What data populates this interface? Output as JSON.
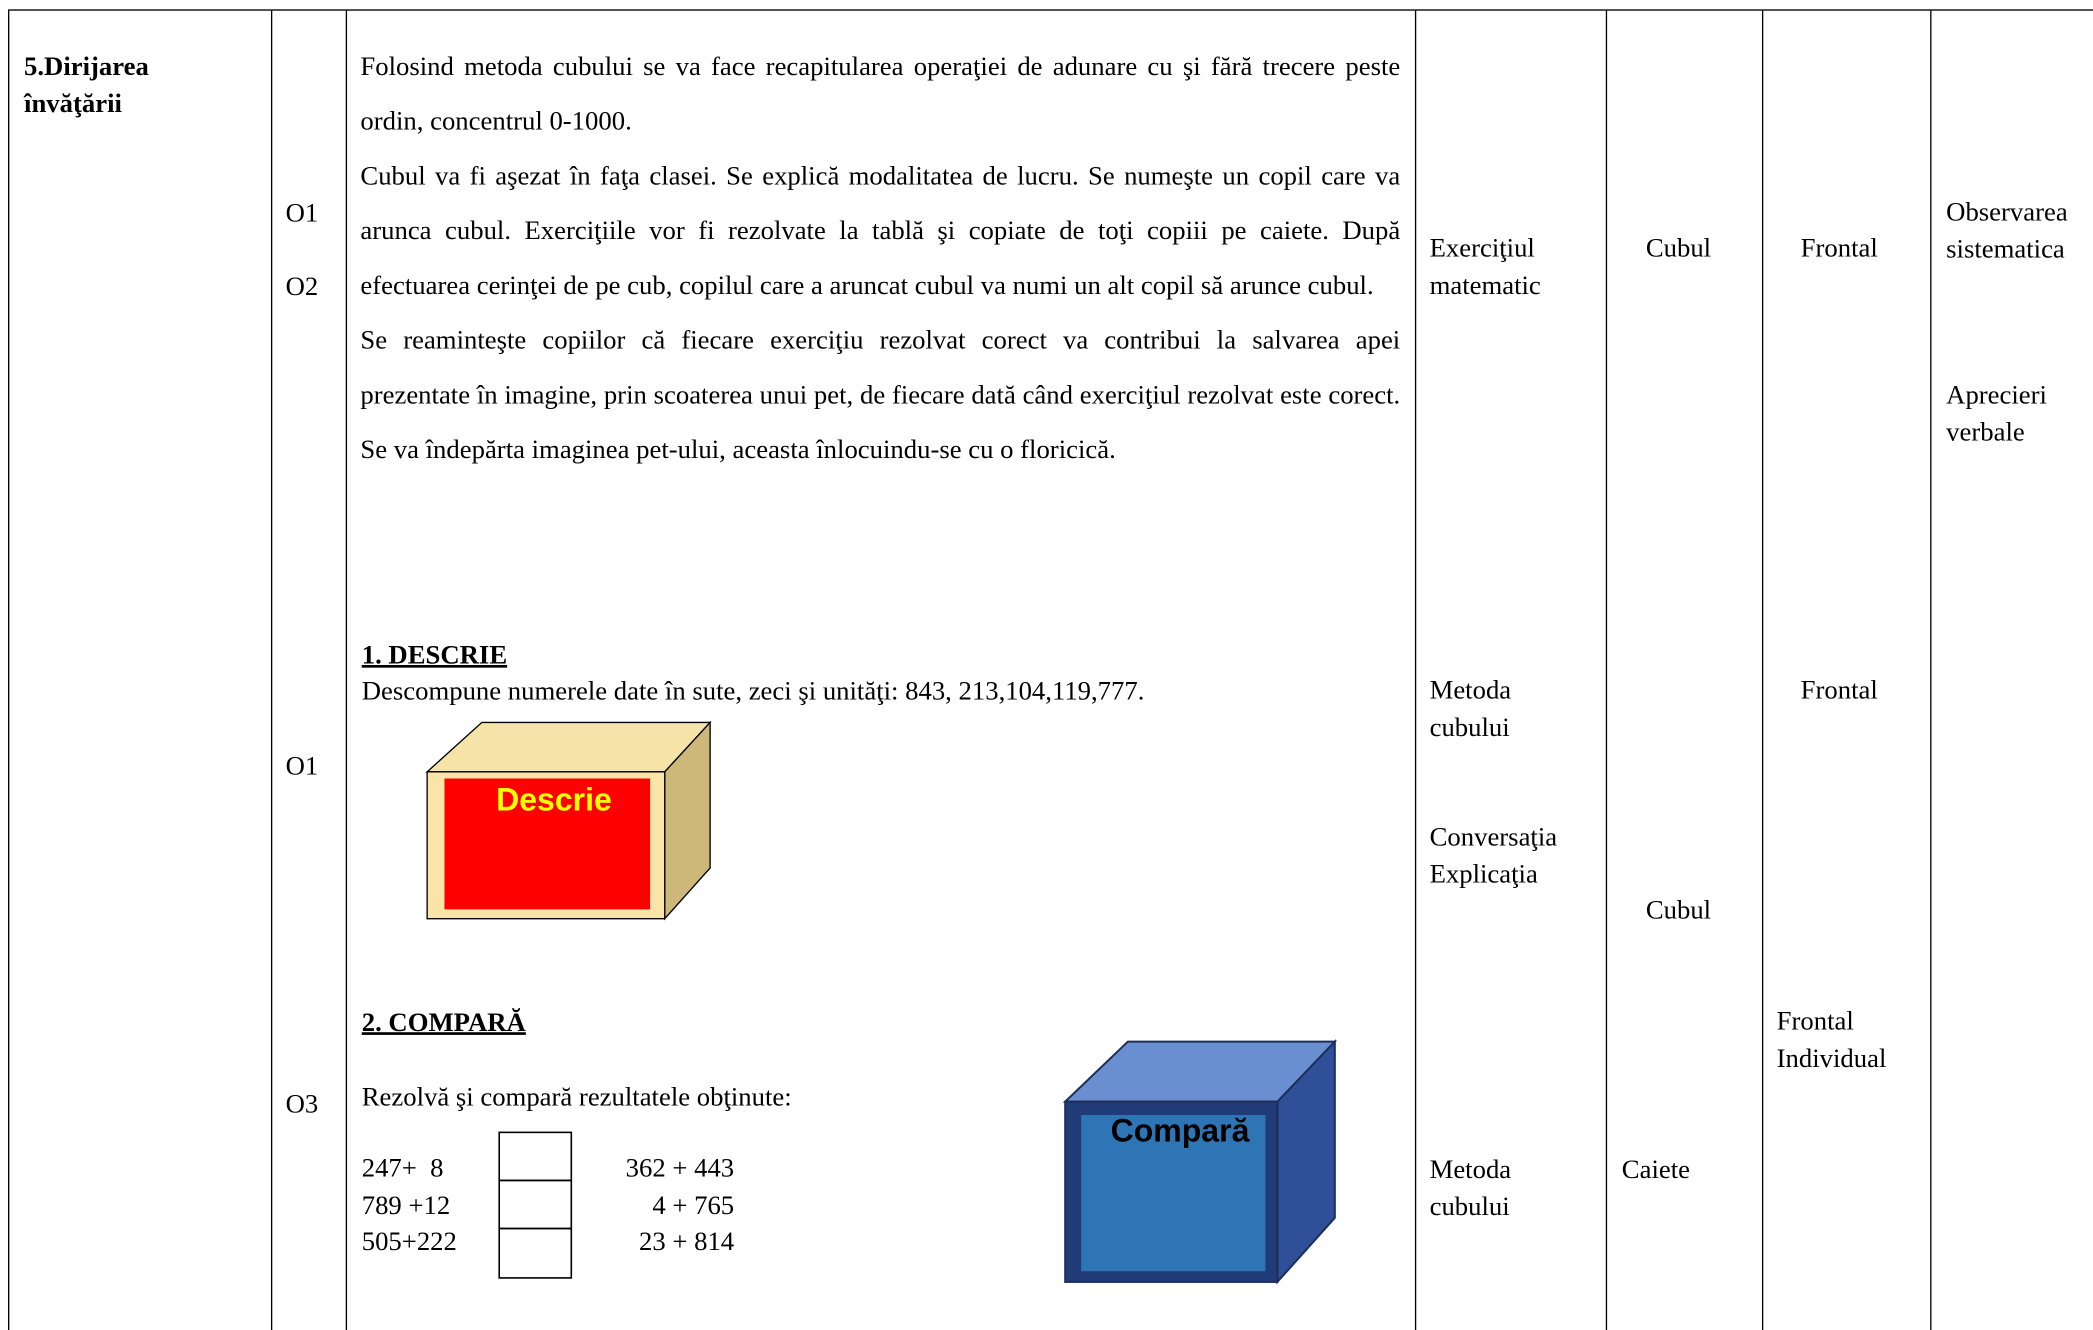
{
  "section": "5.Dirijarea învăţării",
  "objectives": [
    "O1",
    "O2",
    "O1",
    "O3"
  ],
  "intro": [
    "Folosind metoda cubului se va face recapitularea operaţiei de adunare cu şi fără trecere peste ordin, concentrul 0-1000.",
    "Cubul va fi aşezat în faţa clasei. Se explică modalitatea de lucru. Se numeşte un copil care va arunca cubul. Exerciţiile vor fi rezolvate la tablă şi copiate de toţi copiii pe caiete. După efectuarea cerinţei de pe cub, copilul care a aruncat cubul va numi un alt copil să arunce cubul.",
    "Se reaminteşte copiilor că fiecare exerciţiu rezolvat corect va contribui la salvarea apei prezentate în imagine, prin scoaterea unui pet, de fiecare dată când exerciţiul rezolvat este corect. Se va îndepărta imaginea pet-ului, aceasta înlocuindu-se cu o floricică."
  ],
  "descrie": {
    "heading": "1. DESCRIE",
    "text": "Descompune numerele date în sute, zeci şi unităţi: 843, 213,104,119,777.",
    "cube_label": "Descrie"
  },
  "compara": {
    "heading": "2. COMPARĂ",
    "text": "Rezolvă şi compară rezultatele obţinute:",
    "cube_label": "Compară",
    "rows": [
      [
        "247+  8",
        "362 + 443"
      ],
      [
        "789 +12",
        "4 + 765"
      ],
      [
        "505+222",
        "23 + 814"
      ]
    ]
  },
  "methods": [
    "Exerciţiul matematic",
    "Metoda cubului",
    "Conversaţia",
    "Explicaţia",
    "Metoda cubului"
  ],
  "resources": [
    "Cubul",
    "Cubul",
    "Caiete"
  ],
  "forms": [
    "Frontal",
    "Frontal",
    "Frontal",
    "Individual"
  ],
  "evaluation": [
    "Observarea sistematica",
    "Aprecieri verbale"
  ]
}
